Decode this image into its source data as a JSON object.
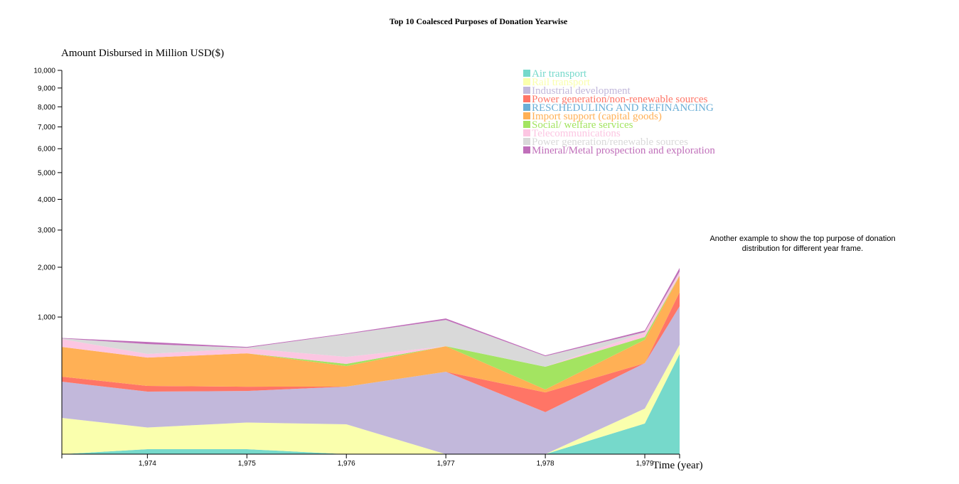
{
  "chart_data": {
    "type": "stacked-area",
    "title": "Top 10 Coalesced Purposes of Donation Yearwise",
    "y_label": "Amount Disbursed in Million USD($)",
    "x_label": "Time (year)",
    "note": "Another example to show the top purpose of donation distribution for different year frame.",
    "yscale": {
      "type": "pow",
      "exponent": 0.447
    },
    "xlim": [
      1973.14,
      1979.35
    ],
    "ylim": [
      0,
      10000
    ],
    "xticks": [
      {
        "value": 1974,
        "label": "1,974"
      },
      {
        "value": 1975,
        "label": "1,975"
      },
      {
        "value": 1976,
        "label": "1,976"
      },
      {
        "value": 1977,
        "label": "1,977"
      },
      {
        "value": 1978,
        "label": "1,978"
      },
      {
        "value": 1979,
        "label": "1,979"
      }
    ],
    "yticks": [
      {
        "value": 1000,
        "label": "1,000"
      },
      {
        "value": 2000,
        "label": "2,000"
      },
      {
        "value": 3000,
        "label": "3,000"
      },
      {
        "value": 4000,
        "label": "4,000"
      },
      {
        "value": 5000,
        "label": "5,000"
      },
      {
        "value": 6000,
        "label": "6,000"
      },
      {
        "value": 7000,
        "label": "7,000"
      },
      {
        "value": 8000,
        "label": "8,000"
      },
      {
        "value": 9000,
        "label": "9,000"
      },
      {
        "value": 10000,
        "label": "10,000"
      }
    ],
    "x": [
      1973.14,
      1974,
      1975,
      1976,
      1977,
      1978,
      1979,
      1979.35
    ],
    "series": [
      {
        "name": "Air transport",
        "color": "#76d9cb",
        "values": [
          0,
          0.6,
          0.6,
          0,
          0,
          0,
          35,
          496
        ]
      },
      {
        "name": "Rail transport",
        "color": "#faffad",
        "values": [
          51,
          25,
          37,
          33,
          0,
          0,
          50,
          107
        ]
      },
      {
        "name": "Industrial development",
        "color": "#c2b8db",
        "values": [
          189,
          147,
          139,
          172,
          320,
          71,
          314,
          580
        ]
      },
      {
        "name": "Power generation/non-renewable sources",
        "color": "#ff7566",
        "values": [
          39,
          37,
          28,
          0,
          0,
          97,
          0,
          269
        ]
      },
      {
        "name": "RESCHEDULING AND REFINANCING",
        "color": "#6aaed6",
        "values": [
          0,
          0,
          0,
          0,
          0,
          0,
          0,
          0
        ]
      },
      {
        "name": "Import support (capital goods)",
        "color": "#ffb055",
        "values": [
          298,
          247,
          298,
          166,
          266,
          18,
          268,
          348
        ]
      },
      {
        "name": "Social/ welfare services",
        "color": "#a3e461",
        "values": [
          0,
          0,
          0,
          21,
          0,
          179,
          37,
          10
        ]
      },
      {
        "name": "Telecommunications",
        "color": "#fcc6e2",
        "values": [
          99,
          39,
          57,
          72,
          0,
          0,
          59,
          70
        ]
      },
      {
        "name": "Power generation/renewable sources",
        "color": "#d9d9d9",
        "values": [
          9,
          116,
          8,
          279,
          368,
          107,
          9,
          20
        ]
      },
      {
        "name": "Mineral/Metal prospection and exploration",
        "color": "#c06fba",
        "values": [
          5,
          27,
          9,
          9,
          23,
          8,
          22,
          82
        ]
      }
    ]
  }
}
